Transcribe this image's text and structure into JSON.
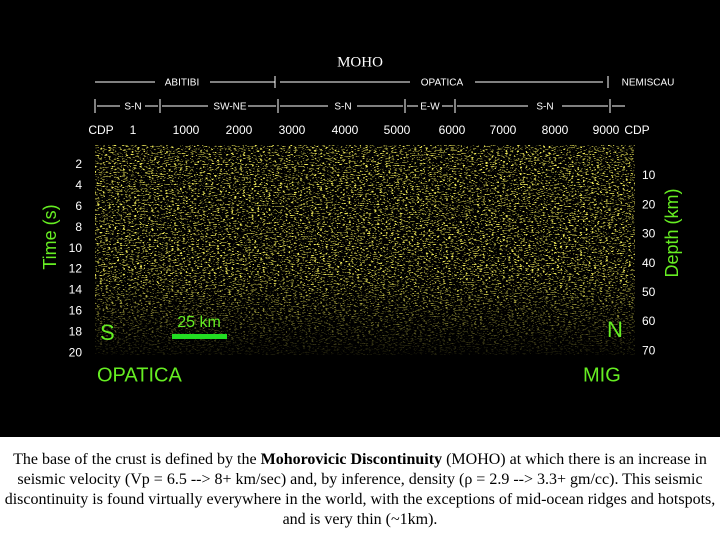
{
  "title": "MOHO",
  "figure": {
    "regions": [
      "ABITIBI",
      "OPATICA",
      "NEMISCAU"
    ],
    "segments": [
      "S-N",
      "SW-NE",
      "S-N",
      "E-W",
      "S-N"
    ],
    "cdp_labels": [
      "CDP",
      "1",
      "1000",
      "2000",
      "3000",
      "4000",
      "5000",
      "6000",
      "7000",
      "8000",
      "9000",
      "CDP"
    ],
    "left_axis": {
      "label": "Time (s)",
      "ticks": [
        "2",
        "4",
        "6",
        "8",
        "10",
        "12",
        "14",
        "16",
        "18",
        "20"
      ]
    },
    "right_axis": {
      "label": "Depth (km)",
      "ticks": [
        "10",
        "20",
        "30",
        "40",
        "50",
        "60",
        "70"
      ]
    },
    "south": "S",
    "north": "N",
    "scale": "25 km",
    "bottom_left": "OPATICA",
    "bottom_right": "MIG"
  },
  "caption": {
    "before": "The base of the crust is defined by the ",
    "bold": "Mohorovicic Discontinuity",
    "after": " (MOHO) at which there is an increase in seismic velocity (Vp = 6.5 --> 8+ km/sec) and, by inference, density (ρ = 2.9 --> 3.3+ gm/cc).  This seismic discontinuity is found virtually everywhere in the world, with the exceptions of mid-ocean ridges and hotspots, and is very thin (~1km)."
  }
}
